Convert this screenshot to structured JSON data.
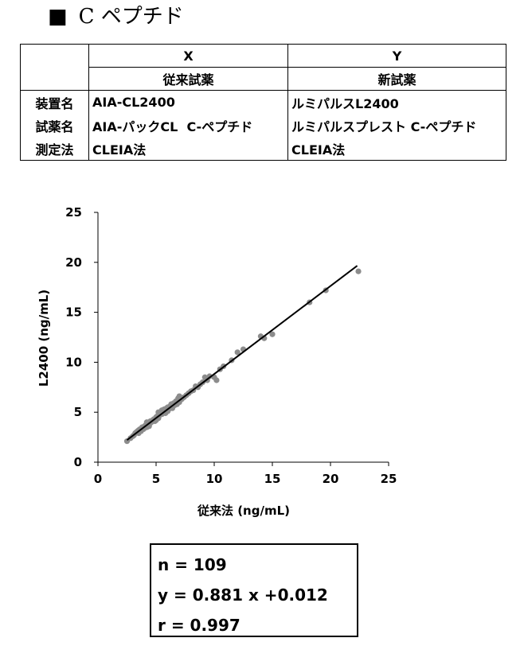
{
  "page_title": {
    "bullet": "■",
    "text": "C ペプチド"
  },
  "comparison_table": {
    "columns": [
      {
        "axis": "X",
        "reagent_type": "従来試薬"
      },
      {
        "axis": "Y",
        "reagent_type": "新試薬"
      }
    ],
    "rows": [
      {
        "label": "装置名",
        "x": "AIA-CL2400",
        "y": "ルミパルスL2400"
      },
      {
        "label": "試薬名",
        "x": "AIA-パックCL  C-ペプチド",
        "y": "ルミパルスプレスト C-ペプチド"
      },
      {
        "label": "測定法",
        "x": "CLEIA法",
        "y": "CLEIA法"
      }
    ]
  },
  "chart_data": {
    "type": "scatter",
    "title": "",
    "xlabel": "従来法 (ng/mL)",
    "ylabel": "L2400 (ng/mL)",
    "xlim": [
      0,
      25
    ],
    "ylim": [
      0,
      25
    ],
    "xticks": [
      0,
      5,
      10,
      15,
      20,
      25
    ],
    "yticks": [
      0,
      5,
      10,
      15,
      20,
      25
    ],
    "grid": false,
    "legend": "none",
    "point_color": "#8c8c8c",
    "line_color": "#000000",
    "series": [
      {
        "points": [
          [
            2.5,
            2.1
          ],
          [
            2.8,
            2.4
          ],
          [
            3.0,
            2.6
          ],
          [
            3.1,
            2.7
          ],
          [
            3.2,
            2.9
          ],
          [
            3.3,
            3.0
          ],
          [
            3.4,
            3.1
          ],
          [
            3.5,
            3.2
          ],
          [
            3.5,
            2.9
          ],
          [
            3.6,
            3.3
          ],
          [
            3.7,
            3.1
          ],
          [
            3.8,
            3.5
          ],
          [
            3.9,
            3.3
          ],
          [
            4.0,
            3.6
          ],
          [
            4.0,
            3.4
          ],
          [
            4.1,
            3.7
          ],
          [
            4.2,
            3.5
          ],
          [
            4.2,
            4.0
          ],
          [
            4.3,
            3.8
          ],
          [
            4.4,
            3.6
          ],
          [
            4.5,
            4.1
          ],
          [
            4.5,
            3.9
          ],
          [
            4.6,
            4.0
          ],
          [
            4.7,
            4.2
          ],
          [
            4.8,
            4.3
          ],
          [
            4.9,
            4.1
          ],
          [
            5.0,
            4.5
          ],
          [
            5.0,
            4.2
          ],
          [
            5.1,
            4.6
          ],
          [
            5.2,
            4.4
          ],
          [
            5.2,
            5.0
          ],
          [
            5.3,
            4.7
          ],
          [
            5.4,
            4.9
          ],
          [
            5.5,
            4.8
          ],
          [
            5.5,
            5.2
          ],
          [
            5.6,
            5.0
          ],
          [
            5.7,
            5.3
          ],
          [
            5.8,
            4.9
          ],
          [
            5.9,
            5.4
          ],
          [
            6.0,
            5.1
          ],
          [
            6.0,
            5.5
          ],
          [
            6.1,
            5.3
          ],
          [
            6.2,
            5.6
          ],
          [
            6.3,
            5.8
          ],
          [
            6.4,
            5.4
          ],
          [
            6.5,
            5.9
          ],
          [
            6.6,
            5.7
          ],
          [
            6.7,
            6.1
          ],
          [
            6.8,
            5.8
          ],
          [
            6.9,
            6.4
          ],
          [
            7.0,
            6.0
          ],
          [
            7.0,
            6.6
          ],
          [
            7.2,
            6.3
          ],
          [
            7.4,
            6.5
          ],
          [
            7.6,
            6.7
          ],
          [
            7.8,
            6.9
          ],
          [
            8.0,
            7.1
          ],
          [
            8.2,
            7.2
          ],
          [
            8.4,
            7.6
          ],
          [
            8.6,
            7.5
          ],
          [
            8.8,
            7.8
          ],
          [
            9.0,
            8.0
          ],
          [
            9.2,
            8.5
          ],
          [
            9.4,
            8.2
          ],
          [
            9.6,
            8.6
          ],
          [
            10.0,
            8.5
          ],
          [
            10.2,
            8.2
          ],
          [
            10.5,
            9.3
          ],
          [
            10.8,
            9.6
          ],
          [
            11.5,
            10.2
          ],
          [
            12.0,
            11.0
          ],
          [
            12.5,
            11.3
          ],
          [
            14.0,
            12.6
          ],
          [
            14.3,
            12.4
          ],
          [
            15.0,
            12.8
          ],
          [
            18.2,
            16.0
          ],
          [
            19.6,
            17.2
          ],
          [
            22.4,
            19.1
          ]
        ]
      }
    ],
    "regression": {
      "slope": 0.881,
      "intercept": 0.012,
      "x_range": [
        2.5,
        22.3
      ]
    }
  },
  "stats_box": {
    "n": "n = 109",
    "equation": "y = 0.881 x +0.012",
    "r": "r = 0.997"
  }
}
